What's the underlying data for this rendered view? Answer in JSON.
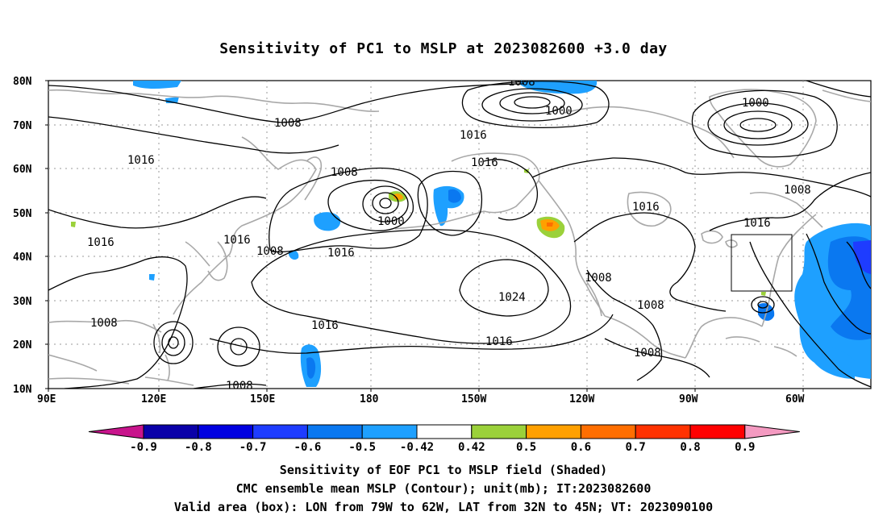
{
  "title": "Sensitivity of PC1 to MSLP at 2023082600 +3.0 day",
  "map": {
    "lat_labels": [
      "80N",
      "70N",
      "60N",
      "50N",
      "40N",
      "30N",
      "20N",
      "10N"
    ],
    "lon_labels": [
      "90E",
      "120E",
      "150E",
      "180",
      "150W",
      "120W",
      "90W",
      "60W"
    ],
    "contour_labels": [
      {
        "text": "1008"
      },
      {
        "text": "1000"
      },
      {
        "text": "1000"
      },
      {
        "text": "1008"
      },
      {
        "text": "1016"
      },
      {
        "text": "1016"
      },
      {
        "text": "1016"
      },
      {
        "text": "1008"
      },
      {
        "text": "1000"
      },
      {
        "text": "1016"
      },
      {
        "text": "1016"
      },
      {
        "text": "1008"
      },
      {
        "text": "1016"
      },
      {
        "text": "1016"
      },
      {
        "text": "1008"
      },
      {
        "text": "1016"
      },
      {
        "text": "1016"
      },
      {
        "text": "1024"
      },
      {
        "text": "1008"
      },
      {
        "text": "1008"
      },
      {
        "text": "1016"
      },
      {
        "text": "1008"
      },
      {
        "text": "1008"
      },
      {
        "text": "1016"
      },
      {
        "text": "1008"
      }
    ],
    "valid_box": {
      "lon_min": -79,
      "lon_max": -62,
      "lat_min": 32,
      "lat_max": 45
    }
  },
  "colorbar": {
    "labels": [
      "-0.9",
      "-0.8",
      "-0.7",
      "-0.6",
      "-0.5",
      "-0.42",
      "0.42",
      "0.5",
      "0.6",
      "0.7",
      "0.8",
      "0.9"
    ],
    "colors": [
      "#0a00a8",
      "#0000e0",
      "#1e3cff",
      "#0a78f0",
      "#1ea0ff",
      "#ffffff",
      "#9bd13a",
      "#ffa000",
      "#ff6e00",
      "#ff3200",
      "#ff0000"
    ],
    "low_extend_color": "#c8148c",
    "high_extend_color": "#f49ac1"
  },
  "footer": {
    "line1": "Sensitivity of EOF PC1 to MSLP field (Shaded)",
    "line2": "CMC ensemble mean MSLP (Contour); unit(mb); IT:2023082600",
    "line3": "Valid area (box): LON from 79W to 62W, LAT from 32N to 45N; VT: 2023090100"
  }
}
